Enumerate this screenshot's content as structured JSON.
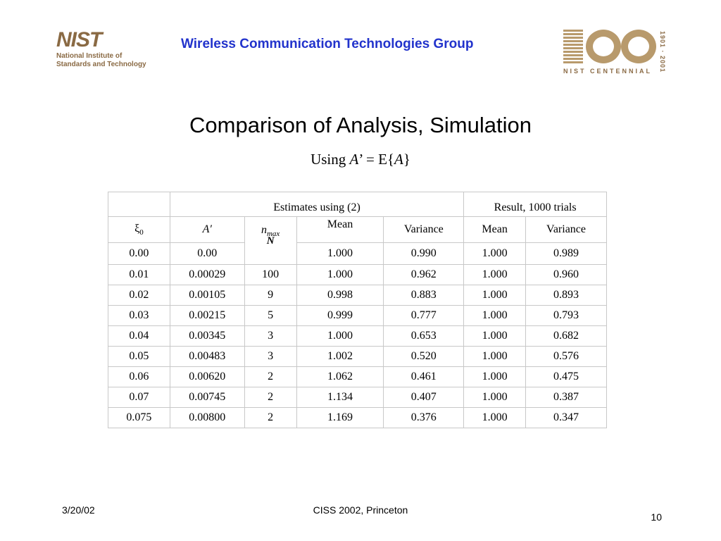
{
  "header": {
    "logo_word": "NIST",
    "logo_sub_line1": "National Institute of",
    "logo_sub_line2": "Standards and Technology",
    "group_title": "Wireless Communication Technologies Group",
    "centennial_years": "1901 · 2001",
    "centennial_label": "NIST CENTENNIAL"
  },
  "slide": {
    "title": "Comparison of Analysis, Simulation",
    "subtitle_prefix": "Using ",
    "subtitle_var1": "A",
    "subtitle_middle": "’ = E{",
    "subtitle_var2": "A",
    "subtitle_suffix": "}"
  },
  "table": {
    "group_headers": {
      "estimates": "Estimates using (2)",
      "result": "Result, 1000 trials"
    },
    "col_xi": "ξ",
    "col_xi_sub": "0",
    "col_a": "A′",
    "col_n": "n",
    "col_n_sub": "max",
    "col_mean_est": "Mean",
    "col_var_est": "Variance",
    "col_mean_res": "Mean",
    "col_var_res": "Variance",
    "n_symbol": "N",
    "rows": [
      [
        "0.00",
        "0.00",
        "",
        "1.000",
        "0.990",
        "1.000",
        "0.989"
      ],
      [
        "0.01",
        "0.00029",
        "100",
        "1.000",
        "0.962",
        "1.000",
        "0.960"
      ],
      [
        "0.02",
        "0.00105",
        "9",
        "0.998",
        "0.883",
        "1.000",
        "0.893"
      ],
      [
        "0.03",
        "0.00215",
        "5",
        "0.999",
        "0.777",
        "1.000",
        "0.793"
      ],
      [
        "0.04",
        "0.00345",
        "3",
        "1.000",
        "0.653",
        "1.000",
        "0.682"
      ],
      [
        "0.05",
        "0.00483",
        "3",
        "1.002",
        "0.520",
        "1.000",
        "0.576"
      ],
      [
        "0.06",
        "0.00620",
        "2",
        "1.062",
        "0.461",
        "1.000",
        "0.475"
      ],
      [
        "0.07",
        "0.00745",
        "2",
        "1.134",
        "0.407",
        "1.000",
        "0.387"
      ],
      [
        "0.075",
        "0.00800",
        "2",
        "1.169",
        "0.376",
        "1.000",
        "0.347"
      ]
    ]
  },
  "footer": {
    "date": "3/20/02",
    "conference": "CISS 2002, Princeton",
    "page": "10"
  }
}
